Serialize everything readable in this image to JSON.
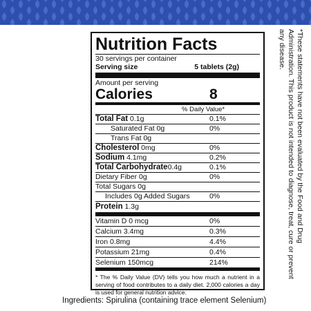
{
  "colors": {
    "banner": "#2d4fae",
    "banner_pattern": "#4a6bc5",
    "rule": "#111111"
  },
  "label": {
    "title": "Nutrition Facts",
    "servings_per_container": "30 servings per container",
    "serving_size_label": "Serving size",
    "serving_size_value": "5 tablets (2g)",
    "amount_per_serving": "Amount per serving",
    "calories_label": "Calories",
    "calories_value": "8",
    "dv_header": "% Daily Value*",
    "nutrients": [
      {
        "name": "Total Fat",
        "amount": " 0.1g",
        "dv": "0.1%"
      },
      {
        "name": "Saturated Fat 0g",
        "amount": "",
        "dv": "0%"
      },
      {
        "name": "Trans Fat 0g",
        "amount": "",
        "dv": ""
      },
      {
        "name": "Cholesterol",
        "amount": " 0mg",
        "dv": "0%"
      },
      {
        "name": "Sodium",
        "amount": " 4.1mg",
        "dv": "0.2%"
      },
      {
        "name": "Total Carbohydrate",
        "amount": "0.4g",
        "dv": "0.1%"
      },
      {
        "name": "Dietary Fiber 0g",
        "amount": "",
        "dv": "0%"
      },
      {
        "name": "Total Sugars 0g",
        "amount": "",
        "dv": ""
      },
      {
        "name": "Includes 0g Added Sugars",
        "amount": "",
        "dv": "0%"
      },
      {
        "name": "Protein",
        "amount": " 1.3g",
        "dv": ""
      }
    ],
    "micronutrients": [
      {
        "name": "Vitamin D 0 mcg",
        "dv": "0%"
      },
      {
        "name": "Calcium 3.4mg",
        "dv": "0.3%"
      },
      {
        "name": "Iron 0.8mg",
        "dv": "4.4%"
      },
      {
        "name": "Potassium 21mg",
        "dv": "0.4%"
      },
      {
        "name": "Selenium 150mcg",
        "dv": "214%"
      }
    ],
    "footnote": "* The % Daily Value (DV) tells you how much a nutrient in a serving of food contributes to a daily diet. 2,000 calories a day is used for general nutrition advice."
  },
  "ingredients": "Ingredients: Spirulina (containing trace element Selenium)",
  "disclaimer": "*These statements have not been evaluated by the Food and Drug Administration. This product is not intended to diagnose, treat, cure or prevent any disease."
}
